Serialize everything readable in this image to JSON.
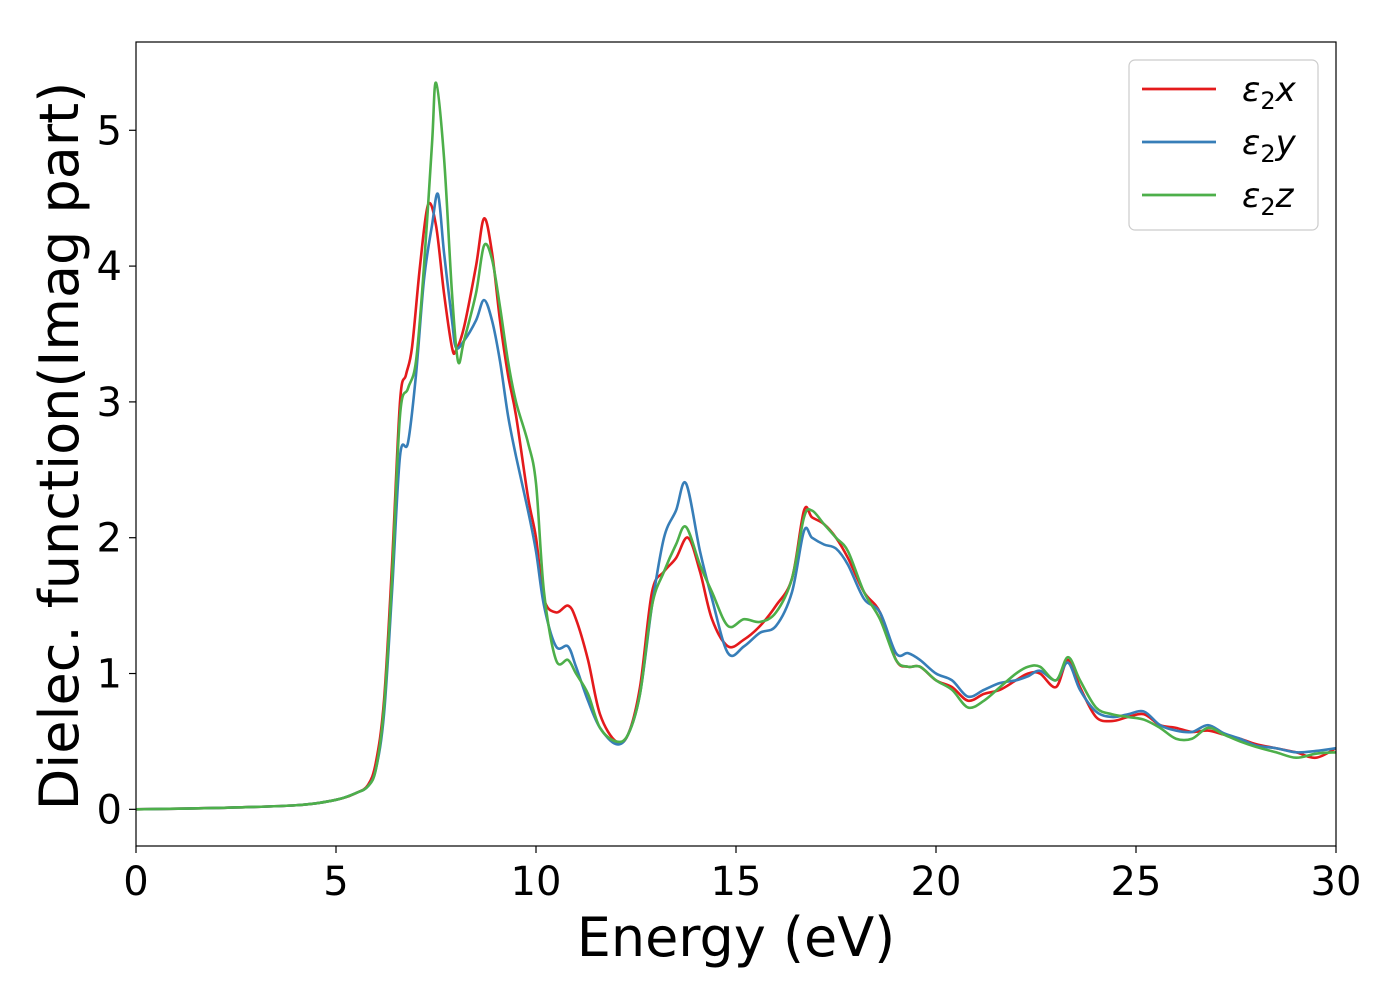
{
  "chart_data": {
    "type": "line",
    "title": "",
    "xlabel": "Energy (eV)",
    "ylabel": "Dielec. function(Imag part)",
    "xlim": [
      0,
      30
    ],
    "ylim": [
      -0.27,
      5.65
    ],
    "xticks": [
      0,
      5,
      10,
      15,
      20,
      25,
      30
    ],
    "yticks": [
      0,
      1,
      2,
      3,
      4,
      5
    ],
    "grid": false,
    "legend_position": "top-right",
    "series": [
      {
        "name": "ε2x",
        "legend": {
          "base": "ε",
          "sub": "2",
          "comp": "x"
        },
        "color": "#e41a1c",
        "x": [
          0,
          2,
          4,
          5,
          5.5,
          5.8,
          6.0,
          6.2,
          6.4,
          6.6,
          6.75,
          6.9,
          7.1,
          7.3,
          7.5,
          7.7,
          7.9,
          8.0,
          8.2,
          8.5,
          8.7,
          8.9,
          9.1,
          9.3,
          9.5,
          9.8,
          10.0,
          10.2,
          10.5,
          10.8,
          11.0,
          11.3,
          11.6,
          12.0,
          12.3,
          12.6,
          12.9,
          13.2,
          13.5,
          13.8,
          14.1,
          14.4,
          14.8,
          15.2,
          15.6,
          16.0,
          16.4,
          16.7,
          16.9,
          17.2,
          17.5,
          17.8,
          18.2,
          18.6,
          19.0,
          19.3,
          19.6,
          20.0,
          20.4,
          20.8,
          21.2,
          21.6,
          22.0,
          22.3,
          22.6,
          23.0,
          23.3,
          23.6,
          24.0,
          24.4,
          24.8,
          25.2,
          25.6,
          26.0,
          26.4,
          26.8,
          27.2,
          27.6,
          28.0,
          28.5,
          29.0,
          29.5,
          30.0
        ],
        "values": [
          0.0,
          0.01,
          0.03,
          0.07,
          0.12,
          0.18,
          0.35,
          0.8,
          1.8,
          3.0,
          3.2,
          3.4,
          4.0,
          4.45,
          4.3,
          3.8,
          3.4,
          3.38,
          3.55,
          4.0,
          4.35,
          4.1,
          3.6,
          3.2,
          2.9,
          2.3,
          2.0,
          1.55,
          1.45,
          1.5,
          1.4,
          1.1,
          0.7,
          0.5,
          0.55,
          0.9,
          1.6,
          1.75,
          1.85,
          2.0,
          1.75,
          1.4,
          1.2,
          1.25,
          1.35,
          1.5,
          1.7,
          2.2,
          2.15,
          2.1,
          2.0,
          1.85,
          1.6,
          1.45,
          1.1,
          1.05,
          1.05,
          0.95,
          0.9,
          0.8,
          0.85,
          0.88,
          0.95,
          1.0,
          1.0,
          0.9,
          1.1,
          0.9,
          0.68,
          0.65,
          0.68,
          0.7,
          0.62,
          0.6,
          0.57,
          0.58,
          0.55,
          0.52,
          0.48,
          0.45,
          0.42,
          0.38,
          0.45
        ]
      },
      {
        "name": "ε2y",
        "legend": {
          "base": "ε",
          "sub": "2",
          "comp": "y"
        },
        "color": "#377eb8",
        "x": [
          0,
          2,
          4,
          5,
          5.5,
          5.8,
          6.0,
          6.2,
          6.4,
          6.6,
          6.8,
          7.0,
          7.2,
          7.4,
          7.55,
          7.7,
          7.9,
          8.0,
          8.2,
          8.5,
          8.7,
          8.9,
          9.1,
          9.3,
          9.5,
          9.8,
          10.0,
          10.2,
          10.5,
          10.8,
          11.0,
          11.3,
          11.6,
          12.0,
          12.3,
          12.6,
          12.9,
          13.2,
          13.5,
          13.75,
          14.1,
          14.4,
          14.8,
          15.2,
          15.6,
          16.0,
          16.4,
          16.7,
          16.9,
          17.2,
          17.5,
          17.8,
          18.2,
          18.6,
          19.0,
          19.3,
          19.6,
          20.0,
          20.4,
          20.8,
          21.2,
          21.6,
          22.0,
          22.3,
          22.6,
          23.0,
          23.3,
          23.6,
          24.0,
          24.4,
          24.8,
          25.2,
          25.6,
          26.0,
          26.4,
          26.8,
          27.2,
          27.6,
          28.0,
          28.5,
          29.0,
          29.5,
          30.0
        ],
        "values": [
          0.0,
          0.01,
          0.03,
          0.07,
          0.12,
          0.17,
          0.3,
          0.7,
          1.6,
          2.6,
          2.7,
          3.2,
          3.9,
          4.3,
          4.53,
          4.1,
          3.6,
          3.4,
          3.45,
          3.6,
          3.75,
          3.6,
          3.3,
          2.9,
          2.6,
          2.2,
          1.9,
          1.5,
          1.2,
          1.2,
          1.05,
          0.8,
          0.6,
          0.48,
          0.55,
          0.85,
          1.5,
          2.0,
          2.2,
          2.4,
          1.9,
          1.55,
          1.15,
          1.2,
          1.3,
          1.35,
          1.6,
          2.05,
          2.0,
          1.95,
          1.92,
          1.8,
          1.55,
          1.45,
          1.15,
          1.15,
          1.1,
          1.0,
          0.95,
          0.83,
          0.88,
          0.93,
          0.95,
          0.98,
          1.02,
          0.95,
          1.08,
          0.88,
          0.72,
          0.68,
          0.7,
          0.72,
          0.62,
          0.58,
          0.57,
          0.62,
          0.56,
          0.52,
          0.47,
          0.45,
          0.42,
          0.43,
          0.45
        ]
      },
      {
        "name": "ε2z",
        "legend": {
          "base": "ε",
          "sub": "2",
          "comp": "z"
        },
        "color": "#4daf4a",
        "x": [
          0,
          2,
          4,
          5,
          5.5,
          5.8,
          6.0,
          6.2,
          6.4,
          6.6,
          6.8,
          7.0,
          7.2,
          7.4,
          7.5,
          7.7,
          7.9,
          8.05,
          8.2,
          8.5,
          8.7,
          8.9,
          9.1,
          9.3,
          9.5,
          9.8,
          10.0,
          10.2,
          10.5,
          10.8,
          11.0,
          11.3,
          11.6,
          12.0,
          12.3,
          12.6,
          12.9,
          13.2,
          13.5,
          13.75,
          14.1,
          14.4,
          14.8,
          15.2,
          15.6,
          16.0,
          16.4,
          16.7,
          16.9,
          17.2,
          17.5,
          17.8,
          18.2,
          18.6,
          19.0,
          19.3,
          19.6,
          20.0,
          20.4,
          20.8,
          21.2,
          21.6,
          22.0,
          22.3,
          22.6,
          23.0,
          23.3,
          23.6,
          24.0,
          24.4,
          24.8,
          25.2,
          25.6,
          26.0,
          26.4,
          26.8,
          27.2,
          27.6,
          28.0,
          28.5,
          29.0,
          29.5,
          30.0
        ],
        "values": [
          0.0,
          0.01,
          0.03,
          0.07,
          0.12,
          0.17,
          0.3,
          0.75,
          1.7,
          2.9,
          3.1,
          3.3,
          4.0,
          4.9,
          5.35,
          4.8,
          3.8,
          3.3,
          3.45,
          3.8,
          4.15,
          4.05,
          3.7,
          3.3,
          3.0,
          2.7,
          2.4,
          1.6,
          1.1,
          1.1,
          1.0,
          0.85,
          0.6,
          0.5,
          0.55,
          0.85,
          1.5,
          1.75,
          1.95,
          2.08,
          1.8,
          1.6,
          1.35,
          1.4,
          1.38,
          1.45,
          1.7,
          2.15,
          2.2,
          2.1,
          2.0,
          1.9,
          1.6,
          1.4,
          1.1,
          1.05,
          1.05,
          0.95,
          0.88,
          0.75,
          0.8,
          0.9,
          1.0,
          1.05,
          1.05,
          0.95,
          1.12,
          0.95,
          0.75,
          0.7,
          0.68,
          0.66,
          0.6,
          0.52,
          0.52,
          0.6,
          0.55,
          0.5,
          0.46,
          0.42,
          0.38,
          0.41,
          0.42
        ]
      }
    ]
  }
}
